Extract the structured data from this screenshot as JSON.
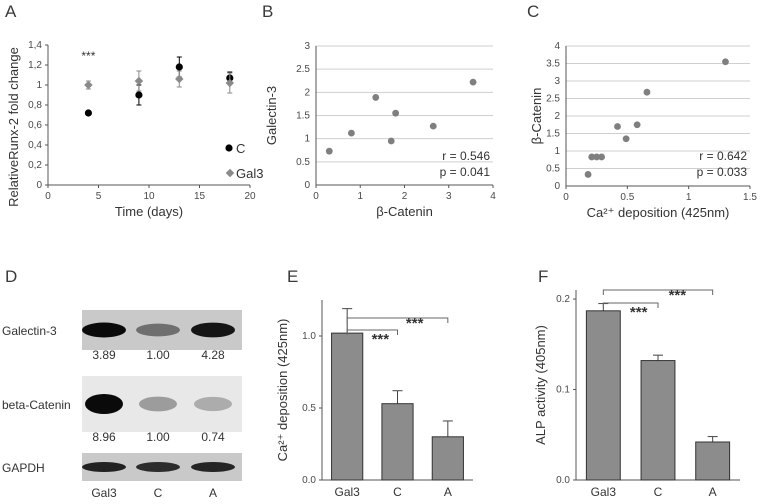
{
  "figure": {
    "panel_letters": [
      "A",
      "B",
      "C",
      "D",
      "E",
      "F"
    ]
  },
  "chart_data": [
    {
      "panel": "A",
      "type": "scatter",
      "title": "",
      "xlabel": "Time (days)",
      "ylabel": "RelativeRunx-2 fold change",
      "xlim": [
        0,
        20
      ],
      "ylim": [
        0,
        1.4
      ],
      "xticks": [
        "0",
        "5",
        "10",
        "15",
        "20"
      ],
      "yticks": [
        "0",
        "0,2",
        "0,4",
        "0,6",
        "0,8",
        "1",
        "1,2",
        "1,4"
      ],
      "annotation": "***",
      "legend": [
        {
          "name": "C",
          "color": "#000000",
          "marker": "circle"
        },
        {
          "name": "Gal3",
          "color": "#8a8a8a",
          "marker": "diamond"
        }
      ],
      "series": [
        {
          "name": "C",
          "x": [
            4,
            9,
            13,
            18
          ],
          "y": [
            0.72,
            0.9,
            1.18,
            1.07
          ],
          "err": [
            0.02,
            0.1,
            0.1,
            0.06
          ]
        },
        {
          "name": "Gal3",
          "x": [
            4,
            9,
            13,
            18
          ],
          "y": [
            1.0,
            1.04,
            1.06,
            1.02
          ],
          "err": [
            0.04,
            0.1,
            0.08,
            0.1
          ]
        }
      ]
    },
    {
      "panel": "B",
      "type": "scatter",
      "xlabel": "β-Catenin",
      "ylabel": "Galectin-3",
      "xlim": [
        0,
        4
      ],
      "ylim": [
        0,
        3
      ],
      "xticks": [
        "0",
        "1",
        "2",
        "3",
        "4"
      ],
      "yticks": [
        "0",
        "0.5",
        "1",
        "1.5",
        "2",
        "2.5",
        "3"
      ],
      "r": "r = 0.546",
      "p": "p = 0.041",
      "x": [
        0.3,
        0.8,
        1.35,
        1.7,
        1.8,
        2.65,
        3.55
      ],
      "y": [
        0.73,
        1.12,
        1.89,
        0.95,
        1.55,
        1.27,
        2.22
      ]
    },
    {
      "panel": "C",
      "type": "scatter",
      "xlabel": "Ca²⁺ deposition (425nm)",
      "ylabel": "β-Catenin",
      "xlim": [
        0,
        1.5
      ],
      "ylim": [
        0,
        4
      ],
      "xticks": [
        "0",
        "0.5",
        "1",
        "1.5"
      ],
      "yticks": [
        "0",
        "0.5",
        "1",
        "1.5",
        "2",
        "2.5",
        "3",
        "3.5",
        "4"
      ],
      "r": "r = 0.642",
      "p": "p = 0.033",
      "x": [
        0.18,
        0.21,
        0.25,
        0.29,
        0.42,
        0.49,
        0.58,
        0.66,
        1.3
      ],
      "y": [
        0.33,
        0.83,
        0.83,
        0.83,
        1.7,
        1.35,
        1.75,
        2.68,
        3.55
      ]
    },
    {
      "panel": "E",
      "type": "bar",
      "categories": [
        "Gal3",
        "C",
        "A"
      ],
      "values": [
        1.02,
        0.53,
        0.3
      ],
      "errors": [
        0.17,
        0.09,
        0.11
      ],
      "xlabel": "",
      "ylabel": "Ca²⁺ deposition (425nm)",
      "ylim": [
        0,
        1.25
      ],
      "yticks": [
        "0.0",
        "0.5",
        "1.0"
      ],
      "significance": [
        "***",
        "***"
      ]
    },
    {
      "panel": "F",
      "type": "bar",
      "categories": [
        "Gal3",
        "C",
        "A"
      ],
      "values": [
        0.187,
        0.132,
        0.042
      ],
      "errors": [
        0.008,
        0.006,
        0.006
      ],
      "xlabel": "",
      "ylabel": "ALP activity  (405nm)",
      "ylim": [
        0,
        0.21
      ],
      "yticks": [
        "0.0",
        "0.1",
        "0.2"
      ],
      "significance": [
        "***",
        "***"
      ]
    }
  ],
  "blot": {
    "panel": "D",
    "rows": [
      {
        "label": "Galectin-3",
        "values": [
          "3.89",
          "1.00",
          "4.28"
        ],
        "intensity": [
          1.0,
          0.55,
          0.95
        ]
      },
      {
        "label": "beta-Catenin",
        "values": [
          "8.96",
          "1.00",
          "0.74"
        ],
        "intensity": [
          1.0,
          0.35,
          0.28
        ]
      },
      {
        "label": "GAPDH",
        "values": [],
        "intensity": [
          0.9,
          0.85,
          0.88
        ]
      }
    ],
    "lanes": [
      "Gal3",
      "C",
      "A"
    ]
  }
}
